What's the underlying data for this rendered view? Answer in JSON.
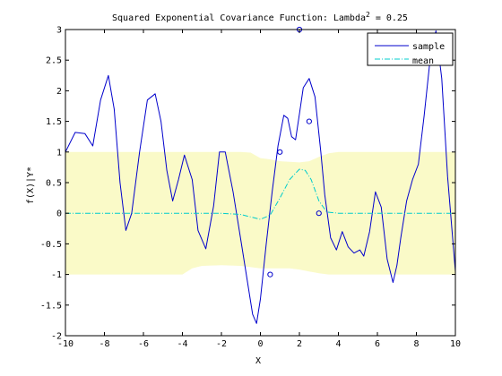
{
  "chart_data": {
    "type": "line",
    "title": "Squared Exponential Covariance Function: Lambda",
    "title_sup": "2",
    "title_suffix": " = 0.25",
    "xlabel": "X",
    "ylabel": "f(X)|Y*",
    "xlim": [
      -10,
      10
    ],
    "ylim": [
      -2,
      3
    ],
    "xticks": [
      -10,
      -8,
      -6,
      -4,
      -2,
      0,
      2,
      4,
      6,
      8,
      10
    ],
    "yticks": [
      -2,
      -1.5,
      -1,
      -0.5,
      0,
      0.5,
      1,
      1.5,
      2,
      2.5,
      3
    ],
    "ytick_labels": [
      "-2",
      "-1.5",
      "-1",
      "-0.5",
      "0",
      "0.5",
      "1",
      "1.5",
      "2",
      "2.5",
      "3"
    ],
    "grid": false,
    "legend_position": "top-right",
    "colors": {
      "sample": "#0000cc",
      "mean": "#00cccc",
      "band": "#fafac8",
      "observations": "#0000cc"
    },
    "series": [
      {
        "name": "sample",
        "style": "solid",
        "x": [
          -10,
          -9.5,
          -9,
          -8.6,
          -8.2,
          -7.8,
          -7.5,
          -7.2,
          -6.9,
          -6.6,
          -6.2,
          -5.8,
          -5.4,
          -5.1,
          -4.8,
          -4.5,
          -4.2,
          -3.9,
          -3.5,
          -3.2,
          -2.8,
          -2.4,
          -2.1,
          -1.8,
          -1.4,
          -1.0,
          -0.7,
          -0.4,
          -0.2,
          0,
          0.3,
          0.6,
          0.9,
          1.2,
          1.4,
          1.6,
          1.8,
          2.0,
          2.2,
          2.5,
          2.8,
          3.1,
          3.3,
          3.6,
          3.9,
          4.2,
          4.5,
          4.8,
          5.1,
          5.3,
          5.6,
          5.9,
          6.2,
          6.5,
          6.8,
          7.0,
          7.2,
          7.5,
          7.8,
          8.1,
          8.4,
          8.7,
          9.0,
          9.3,
          9.6,
          10
        ],
        "y": [
          1.0,
          1.32,
          1.3,
          1.1,
          1.85,
          2.25,
          1.7,
          0.5,
          -0.28,
          0.0,
          1.0,
          1.85,
          1.95,
          1.5,
          0.7,
          0.2,
          0.55,
          0.95,
          0.55,
          -0.28,
          -0.58,
          0.12,
          1.0,
          1.0,
          0.35,
          -0.45,
          -1.05,
          -1.65,
          -1.8,
          -1.4,
          -0.5,
          0.35,
          1.1,
          1.6,
          1.55,
          1.25,
          1.2,
          1.62,
          2.05,
          2.2,
          1.9,
          1.0,
          0.3,
          -0.4,
          -0.6,
          -0.3,
          -0.55,
          -0.65,
          -0.6,
          -0.7,
          -0.3,
          0.35,
          0.1,
          -0.75,
          -1.13,
          -0.85,
          -0.4,
          0.2,
          0.55,
          0.8,
          1.6,
          2.5,
          2.98,
          2.2,
          0.6,
          -0.95
        ]
      },
      {
        "name": "mean",
        "style": "dash-dot",
        "x": [
          -10,
          -2,
          -1.0,
          -0.5,
          0,
          0.5,
          1.0,
          1.5,
          2.0,
          2.3,
          2.6,
          3.0,
          3.4,
          4.0,
          10
        ],
        "y": [
          0,
          0,
          -0.02,
          -0.06,
          -0.1,
          -0.03,
          0.25,
          0.55,
          0.72,
          0.7,
          0.55,
          0.2,
          0.02,
          0.0,
          0
        ]
      }
    ],
    "band": {
      "x": [
        -10,
        -4.0,
        -3.5,
        -3.0,
        -2.0,
        -1.0,
        -0.5,
        0,
        0.5,
        1.0,
        1.5,
        2.0,
        2.5,
        3.0,
        3.5,
        4.0,
        10
      ],
      "upper": [
        1,
        1,
        1,
        1,
        1,
        1,
        0.99,
        0.9,
        0.88,
        0.85,
        0.84,
        0.83,
        0.85,
        0.92,
        0.98,
        1,
        1
      ],
      "lower": [
        -1,
        -1,
        -0.9,
        -0.86,
        -0.85,
        -0.86,
        -0.88,
        -0.9,
        -0.9,
        -0.9,
        -0.9,
        -0.92,
        -0.95,
        -0.98,
        -1,
        -1,
        -1
      ]
    },
    "observations": {
      "x": [
        0.5,
        1.0,
        2.0,
        2.5,
        3.0
      ],
      "y": [
        -1.0,
        1.0,
        3.0,
        1.5,
        0.0
      ]
    }
  }
}
